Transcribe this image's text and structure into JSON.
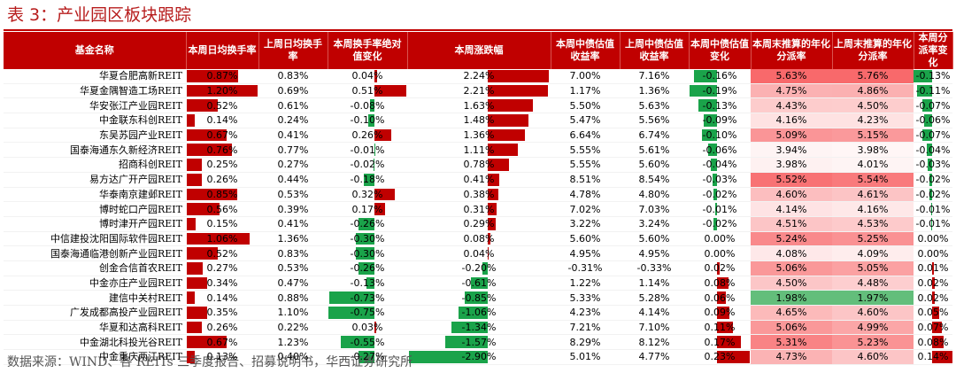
{
  "title": "表 3：产业园区板块跟踪",
  "source": "数据来源：WIND、各 REITs 三季度报告、招募说明书，华西证券研究所",
  "colors": {
    "header_bg": "#c00000",
    "bar_red": "#c00000",
    "bar_green": "#1aa34a",
    "heat_red": "#f8696b",
    "heat_green": "#63be7b"
  },
  "table": {
    "headers": [
      "基金名称",
      "本周日均换手率",
      "上周日均换手率",
      "本周换手率绝对值变化",
      "本周涨跌幅",
      "本周中债估值收益率",
      "上周中债估值收益率",
      "本周中债估值变化",
      "本周末推算的年化分派率",
      "上周末推算的年化分派率",
      "本周分派率变化"
    ],
    "rows": [
      [
        "华夏合肥高新REIT",
        "0.87%",
        "0.83%",
        "0.04%",
        "2.24%",
        "7.00%",
        "7.16%",
        "-0.16%",
        "5.63%",
        "5.76%",
        "-0.13%"
      ],
      [
        "华夏金隅智造工场REIT",
        "1.20%",
        "0.69%",
        "0.51%",
        "2.21%",
        "1.17%",
        "1.36%",
        "-0.19%",
        "4.75%",
        "4.86%",
        "-0.11%"
      ],
      [
        "华安张江产业园REIT",
        "0.52%",
        "0.61%",
        "-0.08%",
        "1.63%",
        "5.50%",
        "5.63%",
        "-0.13%",
        "4.43%",
        "4.50%",
        "-0.07%"
      ],
      [
        "中金联东科创REIT",
        "0.14%",
        "0.24%",
        "-0.10%",
        "1.48%",
        "5.47%",
        "5.56%",
        "-0.09%",
        "4.16%",
        "4.23%",
        "-0.06%"
      ],
      [
        "东吴苏园产业REIT",
        "0.67%",
        "0.41%",
        "0.26%",
        "1.36%",
        "6.64%",
        "6.74%",
        "-0.10%",
        "5.09%",
        "5.15%",
        "-0.07%"
      ],
      [
        "国泰海通东久新经济REIT",
        "0.76%",
        "0.77%",
        "-0.01%",
        "1.11%",
        "5.55%",
        "5.61%",
        "-0.06%",
        "3.94%",
        "3.98%",
        "-0.04%"
      ],
      [
        "招商科创REIT",
        "0.25%",
        "0.27%",
        "-0.02%",
        "0.78%",
        "5.55%",
        "5.60%",
        "-0.04%",
        "3.98%",
        "4.01%",
        "-0.03%"
      ],
      [
        "易方达广开产园REIT",
        "0.26%",
        "0.44%",
        "-0.18%",
        "0.41%",
        "8.51%",
        "8.54%",
        "-0.03%",
        "5.52%",
        "5.54%",
        "-0.02%"
      ],
      [
        "华泰南京建邺REIT",
        "0.85%",
        "0.53%",
        "0.32%",
        "0.38%",
        "4.78%",
        "4.80%",
        "-0.02%",
        "4.60%",
        "4.61%",
        "-0.02%"
      ],
      [
        "博时蛇口产园REIT",
        "0.56%",
        "0.39%",
        "0.17%",
        "0.31%",
        "7.02%",
        "7.03%",
        "-0.01%",
        "4.14%",
        "4.16%",
        "-0.01%"
      ],
      [
        "博时津开产园REIT",
        "0.15%",
        "0.41%",
        "-0.26%",
        "0.29%",
        "3.22%",
        "3.24%",
        "-0.02%",
        "4.51%",
        "4.53%",
        "-0.01%"
      ],
      [
        "中信建投沈阳国际软件园REIT",
        "1.06%",
        "1.36%",
        "-0.30%",
        "0.08%",
        "5.60%",
        "5.60%",
        "0.00%",
        "5.24%",
        "5.25%",
        "0.00%"
      ],
      [
        "国泰海通临港创新产业园REIT",
        "0.52%",
        "0.83%",
        "-0.30%",
        "0.04%",
        "4.95%",
        "4.95%",
        "0.00%",
        "4.08%",
        "4.09%",
        "0.00%"
      ],
      [
        "创金合信首农REIT",
        "0.27%",
        "0.53%",
        "-0.26%",
        "-0.20%",
        "-0.31%",
        "-0.33%",
        "0.02%",
        "5.06%",
        "5.05%",
        "0.01%"
      ],
      [
        "中金亦庄产业园REIT",
        "0.34%",
        "0.47%",
        "-0.13%",
        "-0.61%",
        "1.22%",
        "1.14%",
        "0.08%",
        "4.50%",
        "4.48%",
        "0.02%"
      ],
      [
        "建信中关村REIT",
        "0.14%",
        "0.88%",
        "-0.73%",
        "-0.85%",
        "5.33%",
        "5.28%",
        "0.06%",
        "1.98%",
        "1.97%",
        "0.02%"
      ],
      [
        "广发成都高投产业园REIT",
        "0.35%",
        "1.10%",
        "-0.75%",
        "-1.06%",
        "4.23%",
        "4.14%",
        "0.09%",
        "4.65%",
        "4.60%",
        "0.05%"
      ],
      [
        "华夏和达高科REIT",
        "0.26%",
        "0.22%",
        "0.03%",
        "-1.34%",
        "7.21%",
        "7.10%",
        "0.11%",
        "5.06%",
        "4.99%",
        "0.07%"
      ],
      [
        "中金湖北科投光谷REIT",
        "0.67%",
        "1.23%",
        "-0.55%",
        "-1.57%",
        "8.29%",
        "8.12%",
        "0.17%",
        "5.31%",
        "5.23%",
        "0.08%"
      ],
      [
        "中金重庆两江REIT",
        "0.13%",
        "0.40%",
        "-0.27%",
        "-2.90%",
        "5.01%",
        "4.77%",
        "0.23%",
        "4.73%",
        "4.60%",
        "0.14%"
      ]
    ]
  }
}
